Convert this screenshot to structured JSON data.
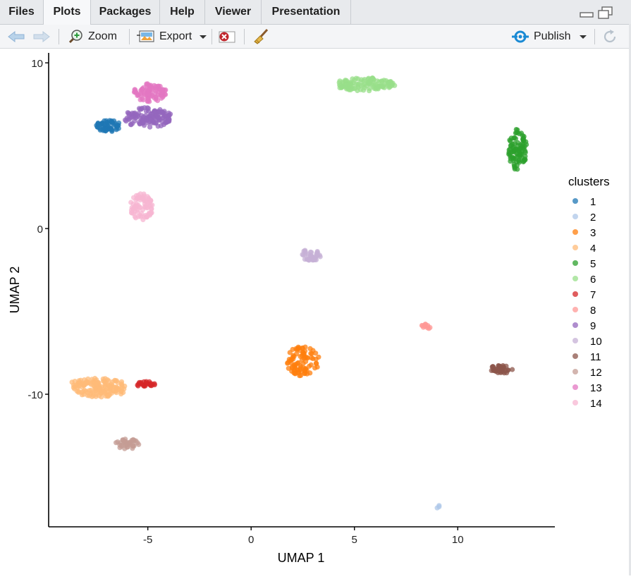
{
  "tabs": [
    {
      "label": "Files",
      "active": false
    },
    {
      "label": "Plots",
      "active": true
    },
    {
      "label": "Packages",
      "active": false
    },
    {
      "label": "Help",
      "active": false
    },
    {
      "label": "Viewer",
      "active": false
    },
    {
      "label": "Presentation",
      "active": false
    }
  ],
  "toolbar": {
    "zoom_label": "Zoom",
    "export_label": "Export",
    "publish_label": "Publish"
  },
  "colors": {
    "publish_accent": "#1a8ad4",
    "remove_red": "#c0262d"
  },
  "chart_data": {
    "type": "scatter",
    "xlabel": "UMAP 1",
    "ylabel": "UMAP 2",
    "xlim": [
      -9.8,
      14.7
    ],
    "ylim": [
      -18.0,
      10.6
    ],
    "xticks": [
      -5,
      0,
      5,
      10
    ],
    "yticks": [
      10,
      0,
      -10
    ],
    "grid": false,
    "legend": {
      "title": "clusters",
      "position": "right"
    },
    "series": [
      {
        "name": "1",
        "color": "#1f77b4",
        "clusters": [
          {
            "x": -6.9,
            "y": 6.2,
            "rx": 0.6,
            "ry": 0.35,
            "n": 60
          }
        ]
      },
      {
        "name": "2",
        "color": "#aec7e8",
        "clusters": [
          {
            "x": 9.1,
            "y": -16.8,
            "rx": 0.12,
            "ry": 0.12,
            "n": 3
          }
        ]
      },
      {
        "name": "3",
        "color": "#ff7f0e",
        "clusters": [
          {
            "x": 2.5,
            "y": -8.0,
            "rx": 0.8,
            "ry": 0.9,
            "n": 90
          }
        ]
      },
      {
        "name": "4",
        "color": "#ffbb78",
        "clusters": [
          {
            "x": -7.3,
            "y": -9.6,
            "rx": 1.3,
            "ry": 0.6,
            "n": 140
          },
          {
            "x": -8.4,
            "y": -9.3,
            "rx": 0.4,
            "ry": 0.2,
            "n": 12
          }
        ]
      },
      {
        "name": "5",
        "color": "#2ca02c",
        "clusters": [
          {
            "x": 12.9,
            "y": 4.8,
            "rx": 0.45,
            "ry": 1.3,
            "n": 90
          }
        ]
      },
      {
        "name": "6",
        "color": "#98df8a",
        "clusters": [
          {
            "x": 5.5,
            "y": 8.7,
            "rx": 1.5,
            "ry": 0.4,
            "n": 120
          }
        ]
      },
      {
        "name": "7",
        "color": "#d62728",
        "clusters": [
          {
            "x": -5.1,
            "y": -9.4,
            "rx": 0.45,
            "ry": 0.18,
            "n": 25
          }
        ]
      },
      {
        "name": "8",
        "color": "#ff9896",
        "clusters": [
          {
            "x": 8.5,
            "y": -5.9,
            "rx": 0.3,
            "ry": 0.15,
            "n": 12
          }
        ]
      },
      {
        "name": "9",
        "color": "#9467bd",
        "clusters": [
          {
            "x": -5.0,
            "y": 6.7,
            "rx": 1.2,
            "ry": 0.6,
            "n": 130
          }
        ]
      },
      {
        "name": "10",
        "color": "#c5b0d5",
        "clusters": [
          {
            "x": 2.9,
            "y": -1.6,
            "rx": 0.55,
            "ry": 0.35,
            "n": 40
          }
        ]
      },
      {
        "name": "11",
        "color": "#8c564b",
        "clusters": [
          {
            "x": 12.1,
            "y": -8.5,
            "rx": 0.6,
            "ry": 0.25,
            "n": 40
          }
        ]
      },
      {
        "name": "12",
        "color": "#c49c94",
        "clusters": [
          {
            "x": -6.0,
            "y": -13.0,
            "rx": 0.6,
            "ry": 0.3,
            "n": 40
          }
        ]
      },
      {
        "name": "13",
        "color": "#e377c2",
        "clusters": [
          {
            "x": -4.9,
            "y": 8.2,
            "rx": 0.8,
            "ry": 0.55,
            "n": 90
          }
        ]
      },
      {
        "name": "14",
        "color": "#f7b6d2",
        "clusters": [
          {
            "x": -5.3,
            "y": 1.3,
            "rx": 0.55,
            "ry": 0.85,
            "n": 80
          }
        ]
      }
    ]
  }
}
